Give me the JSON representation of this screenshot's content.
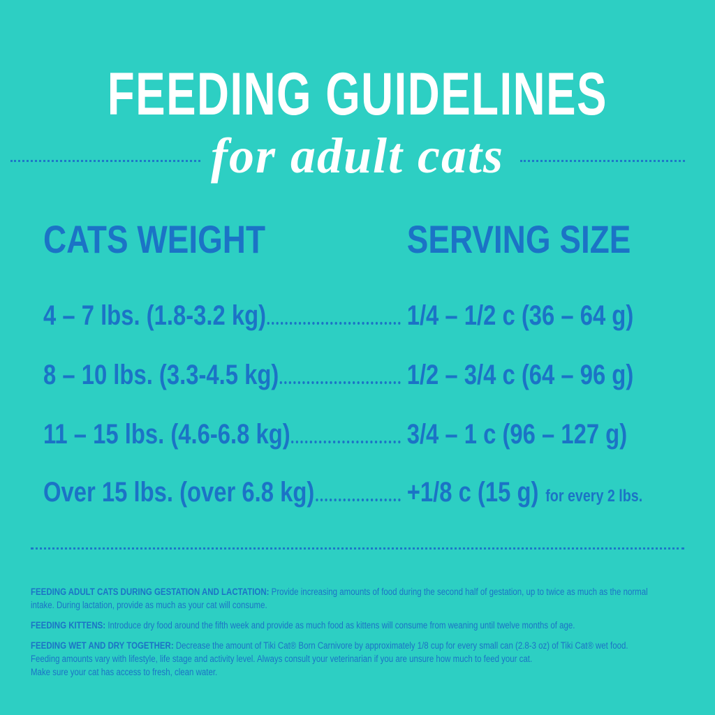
{
  "header": {
    "title": "FEEDING GUIDELINES",
    "subtitle": "for adult cats"
  },
  "table": {
    "columns": [
      "CATS WEIGHT",
      "SERVING SIZE"
    ],
    "rows": [
      [
        "4 – 7 lbs. (1.8-3.2 kg)",
        "1/4 – 1/2 c (36 – 64 g)"
      ],
      [
        "8 – 10 lbs. (3.3-4.5 kg)",
        "1/2 – 3/4 c (64 – 96 g)"
      ],
      [
        "11 – 15 lbs. (4.6-6.8 kg)",
        "3/4 – 1 c (96 – 127 g)"
      ],
      [
        "Over 15 lbs. (over 6.8 kg)",
        "+1/8 c (15 g)",
        "for every 2 lbs."
      ]
    ]
  },
  "notes": [
    {
      "label": "FEEDING ADULT CATS DURING GESTATION AND LACTATION:",
      "text": "Provide increasing amounts of food during the second half of gestation, up to twice as much as the normal intake.  During lactation, provide as much as your cat will consume."
    },
    {
      "label": "FEEDING KITTENS:",
      "text": "Introduce dry food around the fifth week and provide as much food as kittens will consume from weaning until twelve months of age."
    },
    {
      "label": "FEEDING WET AND DRY TOGETHER:",
      "text": "Decrease the amount of Tiki Cat® Born Carnivore by approximately 1/8 cup for every small can (2.8-3 oz) of Tiki Cat® wet food.",
      "more": [
        "Feeding amounts vary with lifestyle, life stage and activity level.  Always consult your veterinarian if you are unsure how much to feed your cat.",
        "Make sure your cat has access to fresh, clean water."
      ]
    }
  ]
}
